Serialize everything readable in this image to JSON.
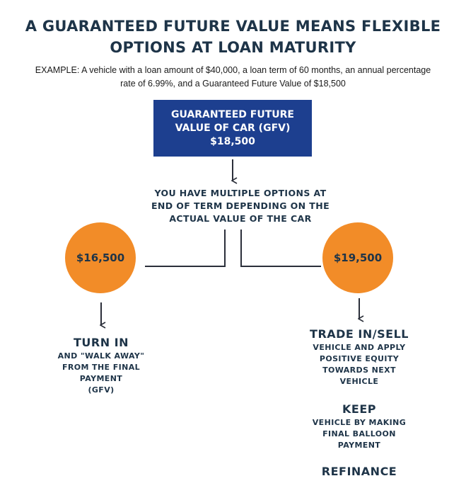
{
  "title": {
    "line1": "A GUARANTEED FUTURE VALUE MEANS FLEXIBLE",
    "line2": "OPTIONS AT LOAN MATURITY"
  },
  "example": {
    "line1": "EXAMPLE: A vehicle with a loan amount of $40,000, a loan term of 60 months, an annual percentage",
    "line2": "rate of 6.99%, and a Guaranteed Future Value of $18,500"
  },
  "gfv_box": {
    "line1": "GUARANTEED FUTURE",
    "line2": "VALUE OF CAR (GFV)",
    "value": "$18,500"
  },
  "options_text": {
    "line1": "YOU HAVE MULTIPLE OPTIONS AT",
    "line2": "END OF TERM DEPENDING ON THE",
    "line3": "ACTUAL VALUE OF THE CAR"
  },
  "left_branch": {
    "value": "$16,500",
    "heading": "TURN IN",
    "sub": [
      "AND \"WALK AWAY\"",
      "FROM THE FINAL",
      "PAYMENT",
      "(GFV)"
    ]
  },
  "right_branch": {
    "value": "$19,500",
    "trade": {
      "heading": "TRADE IN/SELL",
      "sub": [
        "VEHICLE AND APPLY",
        "POSITIVE EQUITY",
        "TOWARDS NEXT",
        "VEHICLE"
      ]
    },
    "keep": {
      "heading": "KEEP",
      "sub": [
        "VEHICLE BY MAKING",
        "FINAL BALLOON",
        "PAYMENT"
      ]
    },
    "refinance": {
      "heading": "REFINANCE"
    }
  },
  "colors": {
    "navy_text": "#1e3448",
    "box_blue": "#1d3f8f",
    "circle_orange": "#f28c28",
    "connector": "#2b2f3a"
  }
}
